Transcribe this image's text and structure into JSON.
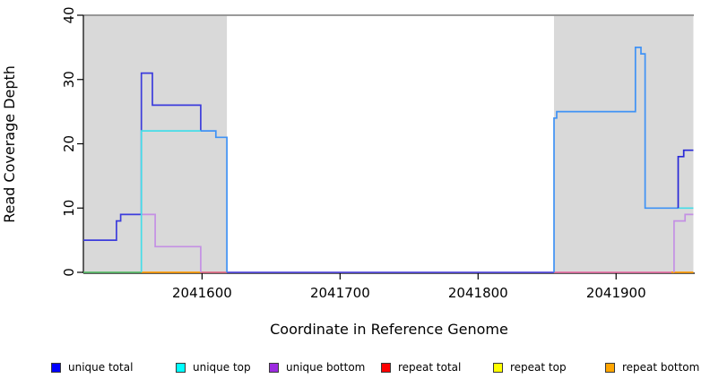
{
  "chart_data": {
    "type": "line",
    "title": "",
    "xlabel": "Coordinate in Reference Genome",
    "ylabel": "Read Coverage Depth",
    "xlim": [
      2041514,
      2041957
    ],
    "ylim": [
      0,
      40
    ],
    "grid": false,
    "xticks": {
      "values": [
        2041600,
        2041700,
        2041800,
        2041900
      ],
      "labels": [
        "2041600",
        "2041700",
        "2041800",
        "2041900"
      ]
    },
    "yticks": {
      "values": [
        0,
        10,
        20,
        30,
        40
      ],
      "labels": [
        "0",
        "10",
        "20",
        "30",
        "40"
      ]
    },
    "shaded_regions": [
      {
        "x0": 2041514,
        "x1": 2041618,
        "color": "#d9d9d9"
      },
      {
        "x0": 2041855,
        "x1": 2041956,
        "color": "#d9d9d9"
      }
    ],
    "series": [
      {
        "name": "baseline-overlap-left",
        "color": "#5fbf6f",
        "path": [
          [
            2041514,
            0
          ],
          [
            2041556,
            0
          ]
        ]
      },
      {
        "name": "repeat-bottom-left",
        "color": "#ff9e0d",
        "path": [
          [
            2041556,
            0
          ],
          [
            2041599,
            0
          ]
        ]
      },
      {
        "name": "repeat-total-left",
        "color": "#e4708c",
        "path": [
          [
            2041599,
            0
          ],
          [
            2041618,
            0
          ]
        ]
      },
      {
        "name": "all-series-zero-middle",
        "color": "#5d52e2",
        "path": [
          [
            2041618,
            0
          ],
          [
            2041855,
            0
          ]
        ]
      },
      {
        "name": "repeat-total-right",
        "color": "#e875a8",
        "path": [
          [
            2041855,
            0
          ],
          [
            2041942,
            0
          ]
        ]
      },
      {
        "name": "repeat-bottom-right",
        "color": "#ff9e0d",
        "path": [
          [
            2041940,
            0
          ],
          [
            2041956,
            0
          ]
        ]
      },
      {
        "name": "unique-bottom-left",
        "color": "#c490e4",
        "path": [
          [
            2041556,
            9
          ],
          [
            2041566,
            9
          ],
          [
            2041566,
            4
          ],
          [
            2041599,
            4
          ],
          [
            2041599,
            0
          ]
        ]
      },
      {
        "name": "unique-total-left",
        "color": "#3c3cdc",
        "path": [
          [
            2041514,
            5
          ],
          [
            2041538,
            5
          ],
          [
            2041538,
            8
          ],
          [
            2041541,
            8
          ],
          [
            2041541,
            9
          ],
          [
            2041556,
            9
          ],
          [
            2041556,
            31
          ],
          [
            2041564,
            31
          ],
          [
            2041564,
            26
          ],
          [
            2041599,
            26
          ],
          [
            2041599,
            22
          ]
        ]
      },
      {
        "name": "unique-top-left",
        "color": "#45dde8",
        "path": [
          [
            2041556,
            0
          ],
          [
            2041556,
            22
          ],
          [
            2041599,
            22
          ]
        ]
      },
      {
        "name": "unique-total-and-top-left",
        "color": "#3f92f5",
        "path": [
          [
            2041599,
            22
          ],
          [
            2041610,
            22
          ],
          [
            2041610,
            21
          ],
          [
            2041618,
            21
          ],
          [
            2041618,
            0
          ]
        ]
      },
      {
        "name": "unique-total-and-top-right",
        "color": "#3f92f5",
        "path": [
          [
            2041855,
            0
          ],
          [
            2041855,
            24
          ],
          [
            2041857,
            24
          ],
          [
            2041857,
            25
          ],
          [
            2041914,
            25
          ],
          [
            2041914,
            35
          ],
          [
            2041918,
            35
          ],
          [
            2041918,
            34
          ],
          [
            2041921,
            34
          ],
          [
            2041921,
            10
          ],
          [
            2041945,
            10
          ]
        ]
      },
      {
        "name": "unique-top-right",
        "color": "#45dde8",
        "path": [
          [
            2041945,
            10
          ],
          [
            2041956,
            10
          ]
        ]
      },
      {
        "name": "unique-total-right",
        "color": "#2828d8",
        "path": [
          [
            2041945,
            10
          ],
          [
            2041945,
            18
          ],
          [
            2041949,
            18
          ],
          [
            2041949,
            19
          ],
          [
            2041956,
            19
          ]
        ]
      },
      {
        "name": "unique-bottom-right",
        "color": "#c490e4",
        "path": [
          [
            2041942,
            0
          ],
          [
            2041942,
            8
          ],
          [
            2041950,
            8
          ],
          [
            2041950,
            9
          ],
          [
            2041956,
            9
          ]
        ]
      }
    ],
    "legend": [
      {
        "label": "unique total",
        "color": "#0000ff"
      },
      {
        "label": "unique top",
        "color": "#00ffff"
      },
      {
        "label": "unique bottom",
        "color": "#9c2ae0"
      },
      {
        "label": "repeat total",
        "color": "#ff0000"
      },
      {
        "label": "repeat top",
        "color": "#ffff00"
      },
      {
        "label": "repeat bottom",
        "color": "#ffa500"
      }
    ],
    "legend_position": "bottom-horizontal"
  }
}
